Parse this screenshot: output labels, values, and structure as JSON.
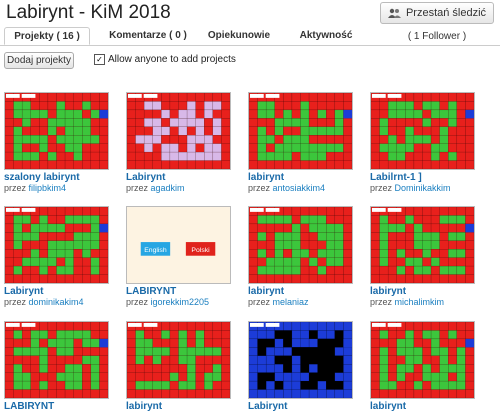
{
  "header": {
    "title": "Labirynt - KiM 2018",
    "unfollow_label": "Przestań śledzić",
    "followers": "( 1 Follower )"
  },
  "tabs": [
    {
      "label": "Projekty ( 16 )",
      "active": true
    },
    {
      "label": "Komentarze ( 0 )",
      "active": false
    },
    {
      "label": "Opiekunowie",
      "active": false
    },
    {
      "label": "Aktywność",
      "active": false
    }
  ],
  "toolbar": {
    "add_label": "Dodaj projekty",
    "allow_label": "Allow anyone to add projects",
    "allow_checked": true
  },
  "by_prefix": "przez",
  "projects": [
    {
      "name": "szalony labirynt",
      "user": "filipbkim4",
      "thumb": "maze-red"
    },
    {
      "name": "Labirynt",
      "user": "agadkim",
      "thumb": "maze-lilac"
    },
    {
      "name": "labirynt",
      "user": "antosiakkim4",
      "thumb": "maze-red"
    },
    {
      "name": "Labilrnt-1 ]",
      "user": "Dominikakkim",
      "thumb": "maze-red"
    },
    {
      "name": "Labirynt",
      "user": "dominikakim4",
      "thumb": "maze-red"
    },
    {
      "name": "LABIRYNT",
      "user": "igorekkim2205",
      "thumb": "language-choice",
      "buttons": [
        "English",
        "Polski"
      ]
    },
    {
      "name": "labirynt",
      "user": "melaniaz",
      "thumb": "maze-red"
    },
    {
      "name": "labirynt",
      "user": "michalimkim",
      "thumb": "maze-red"
    },
    {
      "name": "LABIRYNT",
      "user": "",
      "thumb": "maze-red"
    },
    {
      "name": "labirynt",
      "user": "",
      "thumb": "maze-green"
    },
    {
      "name": "Labirynt",
      "user": "",
      "thumb": "maze-blue"
    },
    {
      "name": "labirynt",
      "user": "",
      "thumb": "maze-red"
    }
  ],
  "colors": {
    "link": "#1a6aa8",
    "maze_red": "#e8201c",
    "maze_green": "#3cc63c",
    "maze_lilac": "#d8b8e8",
    "maze_blue": "#1c3cd8"
  }
}
